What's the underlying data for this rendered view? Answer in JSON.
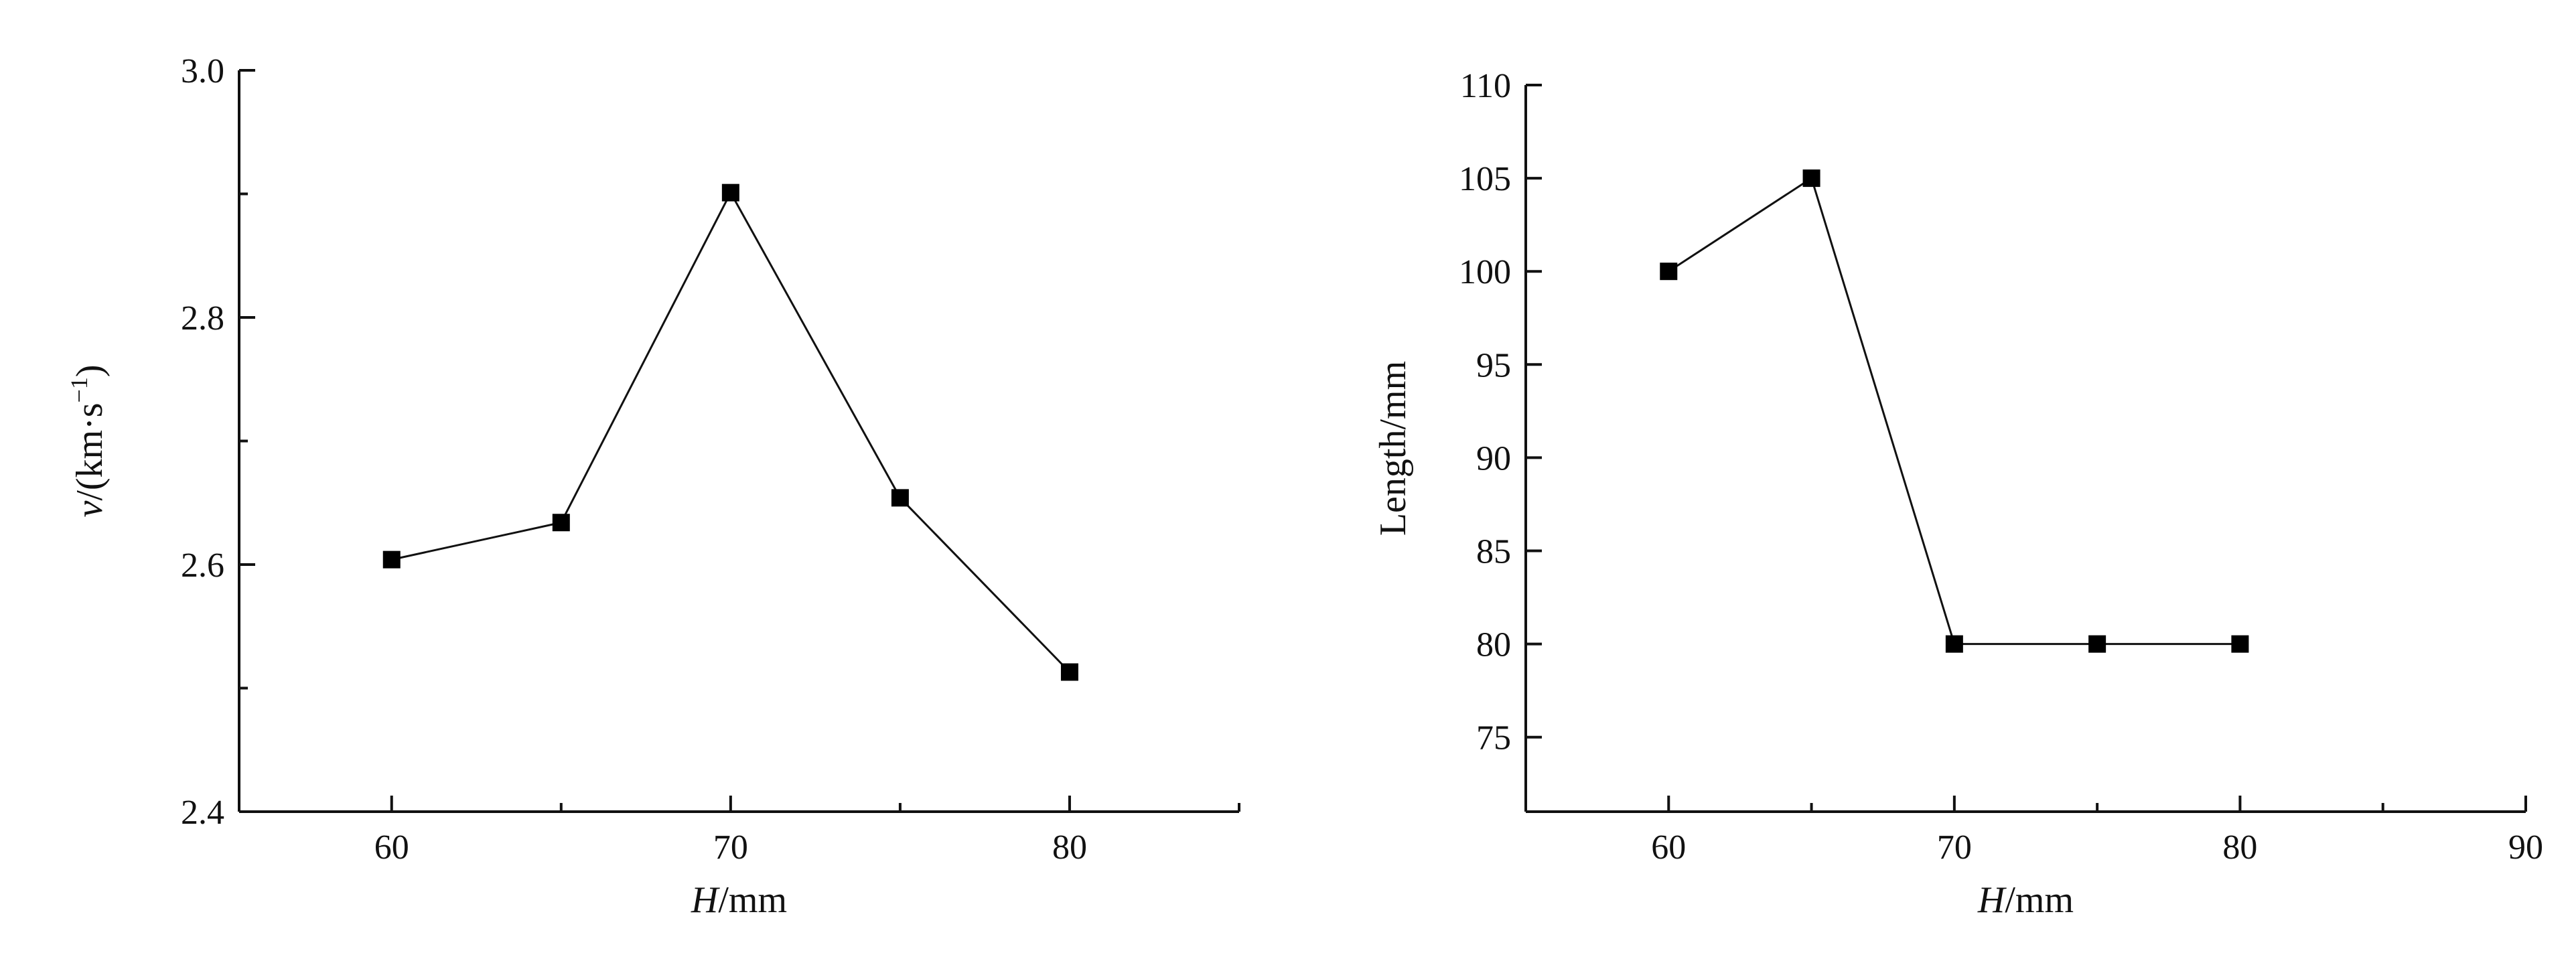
{
  "chart_data": [
    {
      "type": "line",
      "xlabel": {
        "italic": "H",
        "rest": "/mm"
      },
      "ylabel": {
        "italic": "v",
        "rest": "/(km·s",
        "sup": "−1",
        "close": ")"
      },
      "xlim": [
        55.5,
        85
      ],
      "ylim": [
        2.4,
        3.0
      ],
      "xticks": [
        60,
        70,
        80
      ],
      "xminor": [
        65,
        75,
        85
      ],
      "yticks": [
        2.4,
        2.6,
        2.8,
        3.0
      ],
      "ytick_labels": [
        "2.4",
        "2.6",
        "2.8",
        "3.0"
      ],
      "yminor": [
        2.5,
        2.7,
        2.9
      ],
      "marker": "square",
      "series": [
        {
          "x": [
            60,
            65,
            70,
            75,
            80
          ],
          "y": [
            2.604,
            2.634,
            2.901,
            2.654,
            2.513
          ]
        }
      ]
    },
    {
      "type": "line",
      "xlabel": {
        "italic": "H",
        "rest": "/mm"
      },
      "ylabel": {
        "italic": "",
        "rest": "Length/mm",
        "sup": "",
        "close": ""
      },
      "xlim": [
        55,
        90
      ],
      "ylim": [
        71,
        110
      ],
      "xticks": [
        60,
        70,
        80,
        90
      ],
      "xminor": [
        65,
        75,
        85
      ],
      "yticks": [
        75,
        80,
        85,
        90,
        95,
        100,
        105,
        110
      ],
      "ytick_labels": [
        "75",
        "80",
        "85",
        "90",
        "95",
        "100",
        "105",
        "110"
      ],
      "yminor": [],
      "marker": "square",
      "series": [
        {
          "x": [
            60,
            65,
            70,
            75,
            80
          ],
          "y": [
            100,
            105,
            80,
            80,
            80
          ]
        }
      ]
    }
  ]
}
